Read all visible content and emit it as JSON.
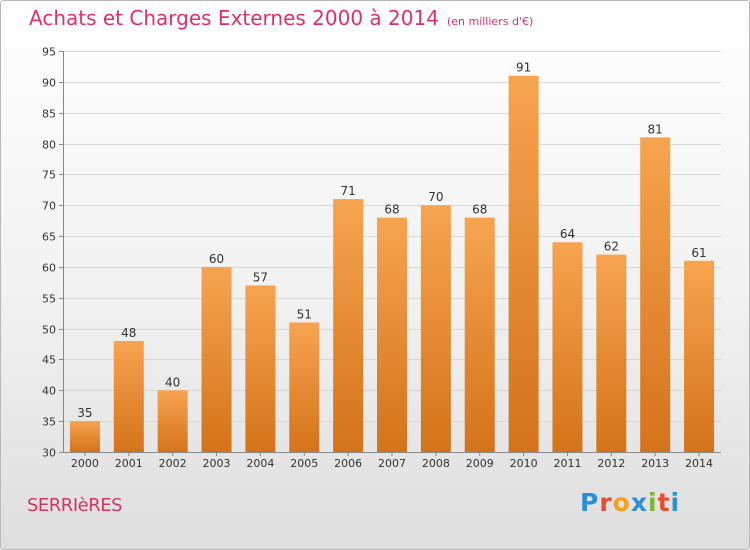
{
  "title": "Achats et Charges Externes 2000 à 2014",
  "subtitle": "(en milliers d'€)",
  "location": "SERRIèRES",
  "logo": {
    "text": "Proxiti",
    "colors": [
      "#2a8fd6",
      "#e94c2f",
      "#f4a11d",
      "#2a8fd6",
      "#7cb82f",
      "#e94c2f",
      "#2a8fd6"
    ]
  },
  "colors": {
    "bar_top": "#f7a450",
    "bar_bottom": "#d4731a",
    "title": "#e0306a"
  },
  "chart_data": {
    "type": "bar",
    "title": "Achats et Charges Externes 2000 à 2014",
    "subtitle": "(en milliers d'€)",
    "categories": [
      "2000",
      "2001",
      "2002",
      "2003",
      "2004",
      "2005",
      "2006",
      "2007",
      "2008",
      "2009",
      "2010",
      "2011",
      "2012",
      "2013",
      "2014"
    ],
    "values": [
      35,
      48,
      40,
      60,
      57,
      51,
      71,
      68,
      70,
      68,
      91,
      64,
      62,
      81,
      61
    ],
    "ylim": [
      30,
      95
    ],
    "yticks": [
      30,
      35,
      40,
      45,
      50,
      55,
      60,
      65,
      70,
      75,
      80,
      85,
      90,
      95
    ],
    "grid": true,
    "xlabel": "",
    "ylabel": ""
  }
}
